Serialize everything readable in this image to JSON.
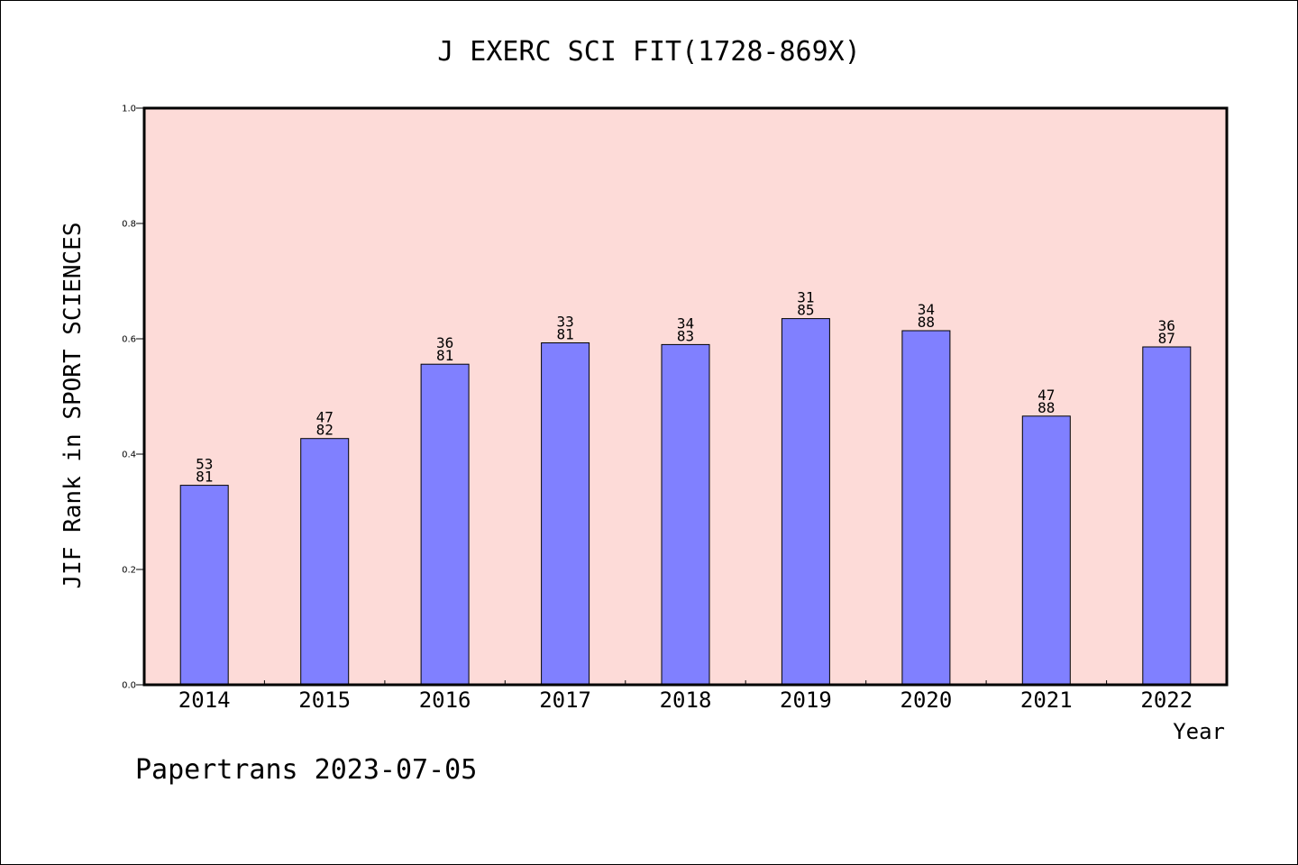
{
  "chart_data": {
    "type": "bar",
    "title": "J EXERC SCI FIT(1728-869X)",
    "xlabel": "Year",
    "ylabel": "JIF Rank in SPORT SCIENCES",
    "ylim": [
      0,
      1.0
    ],
    "yticks": [
      "0.0",
      "0.2",
      "0.4",
      "0.6",
      "0.8",
      "1.0"
    ],
    "categories": [
      "2014",
      "2015",
      "2016",
      "2017",
      "2018",
      "2019",
      "2020",
      "2021",
      "2022"
    ],
    "values": [
      0.346,
      0.427,
      0.556,
      0.593,
      0.59,
      0.635,
      0.614,
      0.466,
      0.586
    ],
    "rank": [
      "53",
      "47",
      "36",
      "33",
      "34",
      "31",
      "34",
      "47",
      "36"
    ],
    "total": [
      "81",
      "82",
      "81",
      "81",
      "83",
      "85",
      "88",
      "88",
      "87"
    ],
    "grid": false,
    "colors": {
      "bar_fill": "#8080ff",
      "plot_background": "#fddbd8"
    }
  },
  "footer": "Papertrans 2023-07-05"
}
